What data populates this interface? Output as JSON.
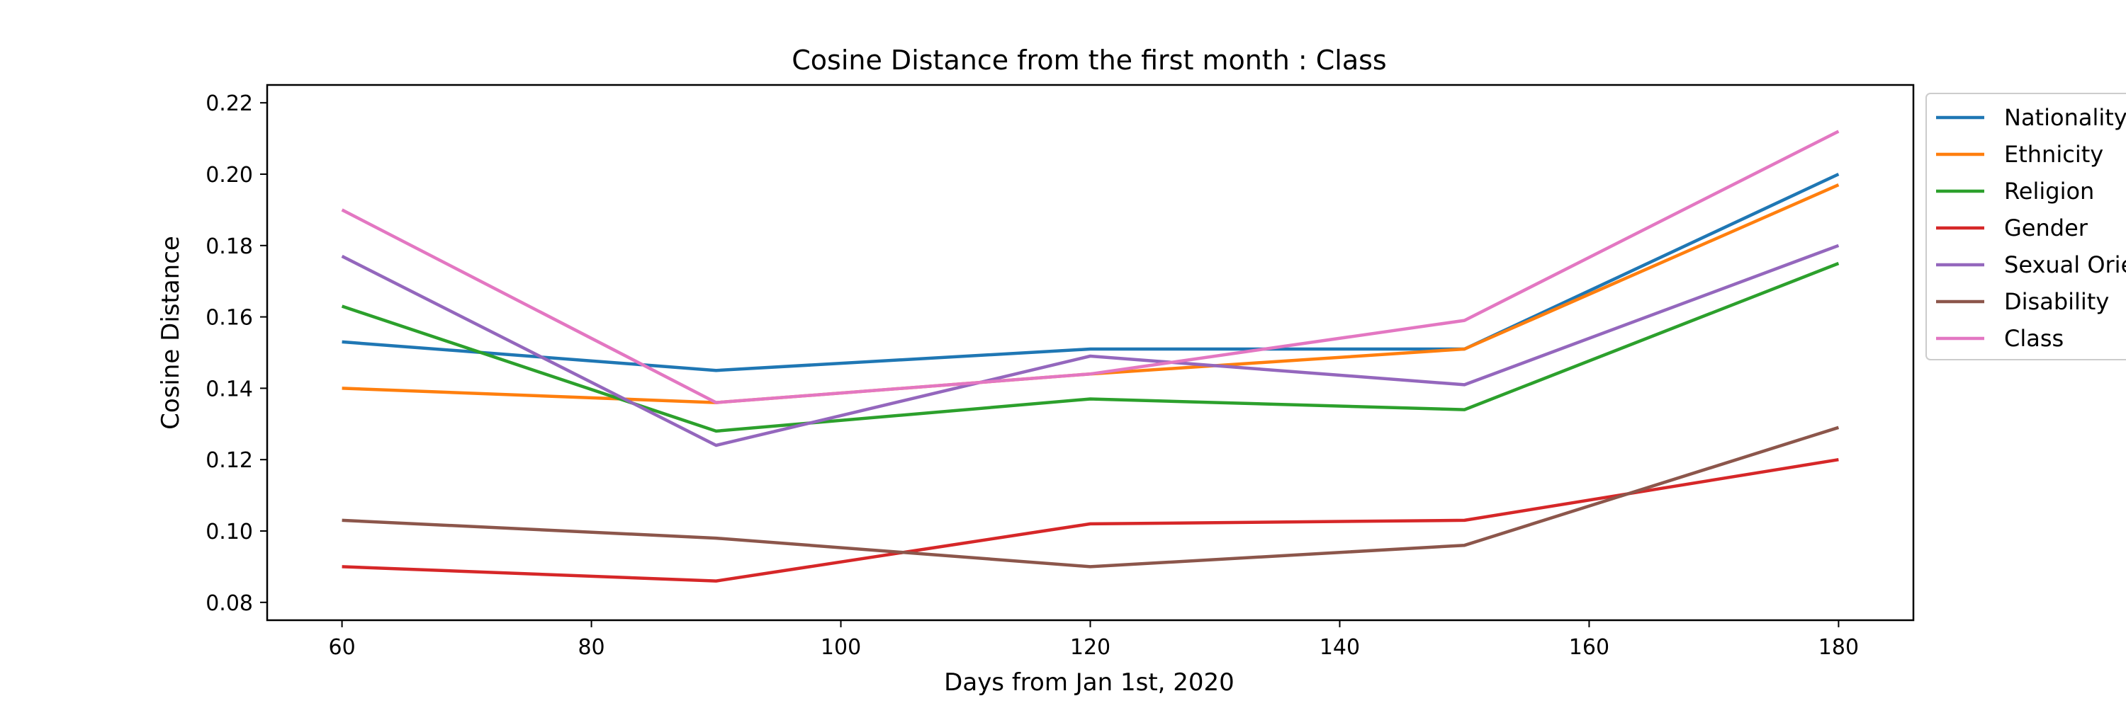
{
  "chart_data": {
    "type": "line",
    "title": "Cosine Distance from the first month : Class",
    "xlabel": "Days from Jan 1st, 2020",
    "ylabel": "Cosine Distance",
    "x": [
      60,
      90,
      120,
      150,
      180
    ],
    "xlim": [
      54,
      186
    ],
    "ylim": [
      0.075,
      0.225
    ],
    "xticks": [
      60,
      80,
      100,
      120,
      140,
      160,
      180
    ],
    "yticks": [
      0.08,
      0.1,
      0.12,
      0.14,
      0.16,
      0.18,
      0.2,
      0.22
    ],
    "ytick_labels": [
      "0.08",
      "0.10",
      "0.12",
      "0.14",
      "0.16",
      "0.18",
      "0.20",
      "0.22"
    ],
    "grid": false,
    "legend_position": "outside-right",
    "series": [
      {
        "name": "Nationality",
        "color": "#1f77b4",
        "values": [
          0.153,
          0.145,
          0.151,
          0.151,
          0.2
        ]
      },
      {
        "name": "Ethnicity",
        "color": "#ff7f0e",
        "values": [
          0.14,
          0.136,
          0.144,
          0.151,
          0.197
        ]
      },
      {
        "name": "Religion",
        "color": "#2ca02c",
        "values": [
          0.163,
          0.128,
          0.137,
          0.134,
          0.175
        ]
      },
      {
        "name": "Gender",
        "color": "#d62728",
        "values": [
          0.09,
          0.086,
          0.102,
          0.103,
          0.12
        ]
      },
      {
        "name": "Sexual Orientation",
        "color": "#9467bd",
        "values": [
          0.177,
          0.124,
          0.149,
          0.141,
          0.18
        ]
      },
      {
        "name": "Disability",
        "color": "#8c564b",
        "values": [
          0.103,
          0.098,
          0.09,
          0.096,
          0.129
        ]
      },
      {
        "name": "Class",
        "color": "#e377c2",
        "values": [
          0.19,
          0.136,
          0.144,
          0.159,
          0.212
        ]
      }
    ]
  }
}
